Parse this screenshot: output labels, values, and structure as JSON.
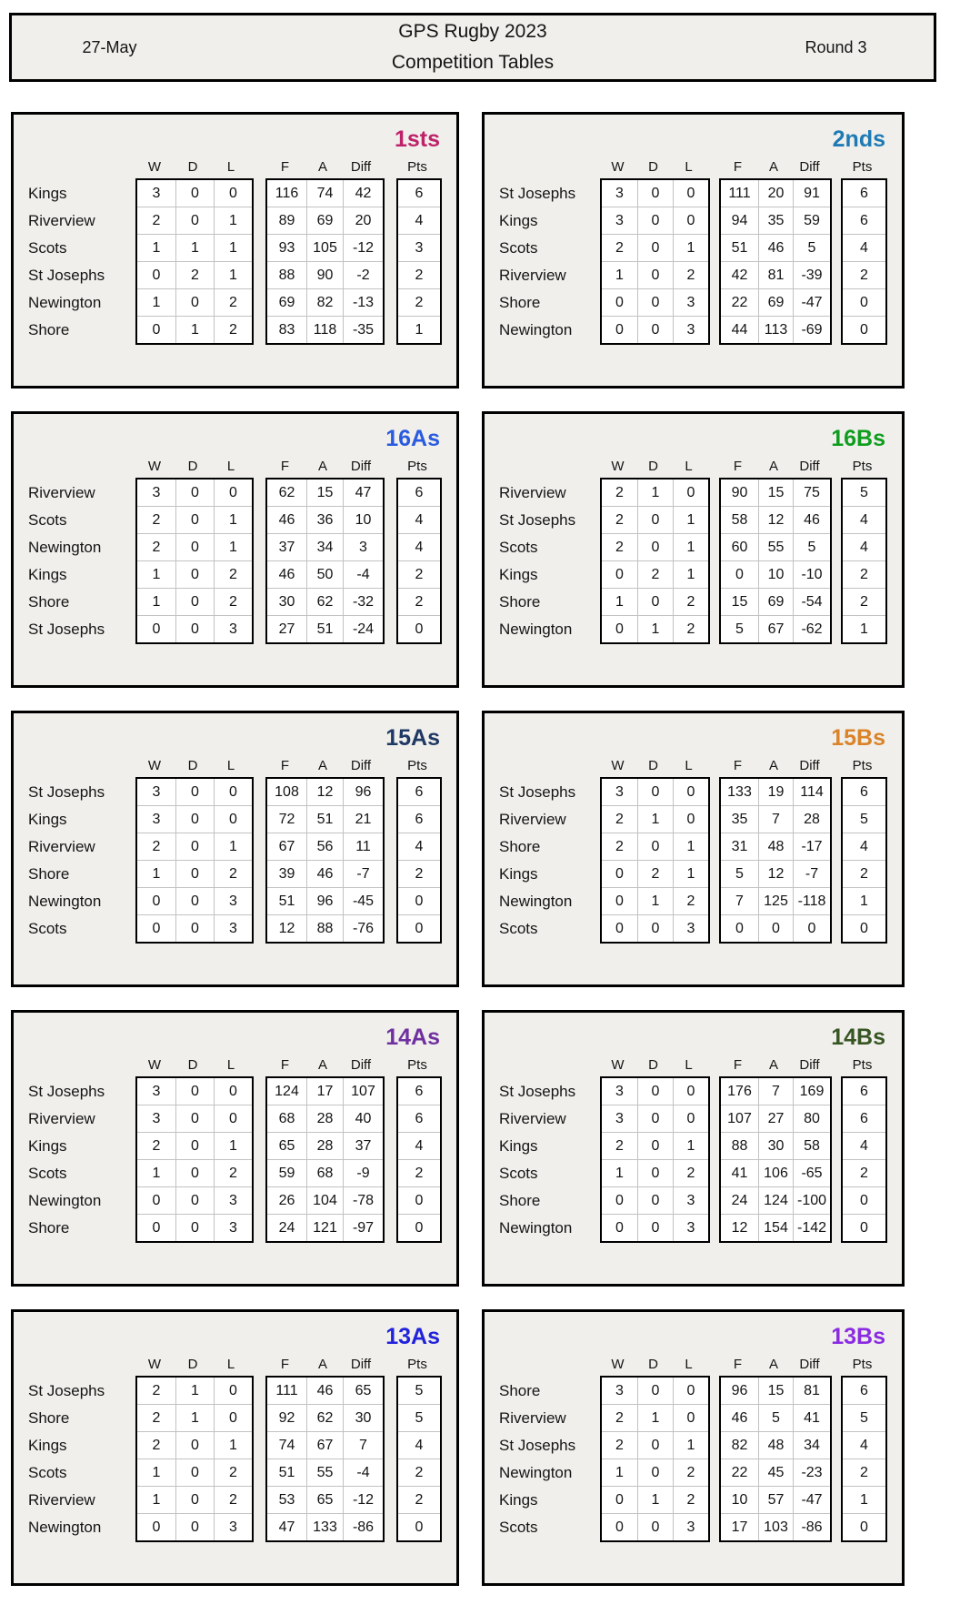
{
  "header": {
    "date": "27-May",
    "title_line1": "GPS Rugby 2023",
    "title_line2": "Competition Tables",
    "round": "Round 3"
  },
  "columns": {
    "record": [
      "W",
      "D",
      "L"
    ],
    "scores": [
      "F",
      "A",
      "Diff"
    ],
    "points": "Pts"
  },
  "tables": [
    {
      "title": "1sts",
      "color": "#BE2268",
      "rows": [
        {
          "team": "Kings",
          "w": 3,
          "d": 0,
          "l": 0,
          "f": 116,
          "a": 74,
          "diff": 42,
          "pts": 6
        },
        {
          "team": "Riverview",
          "w": 2,
          "d": 0,
          "l": 1,
          "f": 89,
          "a": 69,
          "diff": 20,
          "pts": 4
        },
        {
          "team": "Scots",
          "w": 1,
          "d": 1,
          "l": 1,
          "f": 93,
          "a": 105,
          "diff": -12,
          "pts": 3
        },
        {
          "team": "St Josephs",
          "w": 0,
          "d": 2,
          "l": 1,
          "f": 88,
          "a": 90,
          "diff": -2,
          "pts": 2
        },
        {
          "team": "Newington",
          "w": 1,
          "d": 0,
          "l": 2,
          "f": 69,
          "a": 82,
          "diff": -13,
          "pts": 2
        },
        {
          "team": "Shore",
          "w": 0,
          "d": 1,
          "l": 2,
          "f": 83,
          "a": 118,
          "diff": -35,
          "pts": 1
        }
      ]
    },
    {
      "title": "2nds",
      "color": "#1F7AB4",
      "rows": [
        {
          "team": "St Josephs",
          "w": 3,
          "d": 0,
          "l": 0,
          "f": 111,
          "a": 20,
          "diff": 91,
          "pts": 6
        },
        {
          "team": "Kings",
          "w": 3,
          "d": 0,
          "l": 0,
          "f": 94,
          "a": 35,
          "diff": 59,
          "pts": 6
        },
        {
          "team": "Scots",
          "w": 2,
          "d": 0,
          "l": 1,
          "f": 51,
          "a": 46,
          "diff": 5,
          "pts": 4
        },
        {
          "team": "Riverview",
          "w": 1,
          "d": 0,
          "l": 2,
          "f": 42,
          "a": 81,
          "diff": -39,
          "pts": 2
        },
        {
          "team": "Shore",
          "w": 0,
          "d": 0,
          "l": 3,
          "f": 22,
          "a": 69,
          "diff": -47,
          "pts": 0
        },
        {
          "team": "Newington",
          "w": 0,
          "d": 0,
          "l": 3,
          "f": 44,
          "a": 113,
          "diff": -69,
          "pts": 0
        }
      ]
    },
    {
      "title": "16As",
      "color": "#2A5BDF",
      "rows": [
        {
          "team": "Riverview",
          "w": 3,
          "d": 0,
          "l": 0,
          "f": 62,
          "a": 15,
          "diff": 47,
          "pts": 6
        },
        {
          "team": "Scots",
          "w": 2,
          "d": 0,
          "l": 1,
          "f": 46,
          "a": 36,
          "diff": 10,
          "pts": 4
        },
        {
          "team": "Newington",
          "w": 2,
          "d": 0,
          "l": 1,
          "f": 37,
          "a": 34,
          "diff": 3,
          "pts": 4
        },
        {
          "team": "Kings",
          "w": 1,
          "d": 0,
          "l": 2,
          "f": 46,
          "a": 50,
          "diff": -4,
          "pts": 2
        },
        {
          "team": "Shore",
          "w": 1,
          "d": 0,
          "l": 2,
          "f": 30,
          "a": 62,
          "diff": -32,
          "pts": 2
        },
        {
          "team": "St Josephs",
          "w": 0,
          "d": 0,
          "l": 3,
          "f": 27,
          "a": 51,
          "diff": -24,
          "pts": 0
        }
      ]
    },
    {
      "title": "16Bs",
      "color": "#0F9D1E",
      "rows": [
        {
          "team": "Riverview",
          "w": 2,
          "d": 1,
          "l": 0,
          "f": 90,
          "a": 15,
          "diff": 75,
          "pts": 5
        },
        {
          "team": "St Josephs",
          "w": 2,
          "d": 0,
          "l": 1,
          "f": 58,
          "a": 12,
          "diff": 46,
          "pts": 4
        },
        {
          "team": "Scots",
          "w": 2,
          "d": 0,
          "l": 1,
          "f": 60,
          "a": 55,
          "diff": 5,
          "pts": 4
        },
        {
          "team": "Kings",
          "w": 0,
          "d": 2,
          "l": 1,
          "f": 0,
          "a": 10,
          "diff": -10,
          "pts": 2
        },
        {
          "team": "Shore",
          "w": 1,
          "d": 0,
          "l": 2,
          "f": 15,
          "a": 69,
          "diff": -54,
          "pts": 2
        },
        {
          "team": "Newington",
          "w": 0,
          "d": 1,
          "l": 2,
          "f": 5,
          "a": 67,
          "diff": -62,
          "pts": 1
        }
      ]
    },
    {
      "title": "15As",
      "color": "#203864",
      "rows": [
        {
          "team": "St Josephs",
          "w": 3,
          "d": 0,
          "l": 0,
          "f": 108,
          "a": 12,
          "diff": 96,
          "pts": 6
        },
        {
          "team": "Kings",
          "w": 3,
          "d": 0,
          "l": 0,
          "f": 72,
          "a": 51,
          "diff": 21,
          "pts": 6
        },
        {
          "team": "Riverview",
          "w": 2,
          "d": 0,
          "l": 1,
          "f": 67,
          "a": 56,
          "diff": 11,
          "pts": 4
        },
        {
          "team": "Shore",
          "w": 1,
          "d": 0,
          "l": 2,
          "f": 39,
          "a": 46,
          "diff": -7,
          "pts": 2
        },
        {
          "team": "Newington",
          "w": 0,
          "d": 0,
          "l": 3,
          "f": 51,
          "a": 96,
          "diff": -45,
          "pts": 0
        },
        {
          "team": "Scots",
          "w": 0,
          "d": 0,
          "l": 3,
          "f": 12,
          "a": 88,
          "diff": -76,
          "pts": 0
        }
      ]
    },
    {
      "title": "15Bs",
      "color": "#DA8328",
      "rows": [
        {
          "team": "St Josephs",
          "w": 3,
          "d": 0,
          "l": 0,
          "f": 133,
          "a": 19,
          "diff": 114,
          "pts": 6
        },
        {
          "team": "Riverview",
          "w": 2,
          "d": 1,
          "l": 0,
          "f": 35,
          "a": 7,
          "diff": 28,
          "pts": 5
        },
        {
          "team": "Shore",
          "w": 2,
          "d": 0,
          "l": 1,
          "f": 31,
          "a": 48,
          "diff": -17,
          "pts": 4
        },
        {
          "team": "Kings",
          "w": 0,
          "d": 2,
          "l": 1,
          "f": 5,
          "a": 12,
          "diff": -7,
          "pts": 2
        },
        {
          "team": "Newington",
          "w": 0,
          "d": 1,
          "l": 2,
          "f": 7,
          "a": 125,
          "diff": -118,
          "pts": 1
        },
        {
          "team": "Scots",
          "w": 0,
          "d": 0,
          "l": 3,
          "f": 0,
          "a": 0,
          "diff": 0,
          "pts": 0
        }
      ]
    },
    {
      "title": "14As",
      "color": "#7030A0",
      "rows": [
        {
          "team": "St Josephs",
          "w": 3,
          "d": 0,
          "l": 0,
          "f": 124,
          "a": 17,
          "diff": 107,
          "pts": 6
        },
        {
          "team": "Riverview",
          "w": 3,
          "d": 0,
          "l": 0,
          "f": 68,
          "a": 28,
          "diff": 40,
          "pts": 6
        },
        {
          "team": "Kings",
          "w": 2,
          "d": 0,
          "l": 1,
          "f": 65,
          "a": 28,
          "diff": 37,
          "pts": 4
        },
        {
          "team": "Scots",
          "w": 1,
          "d": 0,
          "l": 2,
          "f": 59,
          "a": 68,
          "diff": -9,
          "pts": 2
        },
        {
          "team": "Newington",
          "w": 0,
          "d": 0,
          "l": 3,
          "f": 26,
          "a": 104,
          "diff": -78,
          "pts": 0
        },
        {
          "team": "Shore",
          "w": 0,
          "d": 0,
          "l": 3,
          "f": 24,
          "a": 121,
          "diff": -97,
          "pts": 0
        }
      ]
    },
    {
      "title": "14Bs",
      "color": "#375623",
      "rows": [
        {
          "team": "St Josephs",
          "w": 3,
          "d": 0,
          "l": 0,
          "f": 176,
          "a": 7,
          "diff": 169,
          "pts": 6
        },
        {
          "team": "Riverview",
          "w": 3,
          "d": 0,
          "l": 0,
          "f": 107,
          "a": 27,
          "diff": 80,
          "pts": 6
        },
        {
          "team": "Kings",
          "w": 2,
          "d": 0,
          "l": 1,
          "f": 88,
          "a": 30,
          "diff": 58,
          "pts": 4
        },
        {
          "team": "Scots",
          "w": 1,
          "d": 0,
          "l": 2,
          "f": 41,
          "a": 106,
          "diff": -65,
          "pts": 2
        },
        {
          "team": "Shore",
          "w": 0,
          "d": 0,
          "l": 3,
          "f": 24,
          "a": 124,
          "diff": -100,
          "pts": 0
        },
        {
          "team": "Newington",
          "w": 0,
          "d": 0,
          "l": 3,
          "f": 12,
          "a": 154,
          "diff": -142,
          "pts": 0
        }
      ]
    },
    {
      "title": "13As",
      "color": "#2222DC",
      "rows": [
        {
          "team": "St Josephs",
          "w": 2,
          "d": 1,
          "l": 0,
          "f": 111,
          "a": 46,
          "diff": 65,
          "pts": 5
        },
        {
          "team": "Shore",
          "w": 2,
          "d": 1,
          "l": 0,
          "f": 92,
          "a": 62,
          "diff": 30,
          "pts": 5
        },
        {
          "team": "Kings",
          "w": 2,
          "d": 0,
          "l": 1,
          "f": 74,
          "a": 67,
          "diff": 7,
          "pts": 4
        },
        {
          "team": "Scots",
          "w": 1,
          "d": 0,
          "l": 2,
          "f": 51,
          "a": 55,
          "diff": -4,
          "pts": 2
        },
        {
          "team": "Riverview",
          "w": 1,
          "d": 0,
          "l": 2,
          "f": 53,
          "a": 65,
          "diff": -12,
          "pts": 2
        },
        {
          "team": "Newington",
          "w": 0,
          "d": 0,
          "l": 3,
          "f": 47,
          "a": 133,
          "diff": -86,
          "pts": 0
        }
      ]
    },
    {
      "title": "13Bs",
      "color": "#8A2BE2",
      "rows": [
        {
          "team": "Shore",
          "w": 3,
          "d": 0,
          "l": 0,
          "f": 96,
          "a": 15,
          "diff": 81,
          "pts": 6
        },
        {
          "team": "Riverview",
          "w": 2,
          "d": 1,
          "l": 0,
          "f": 46,
          "a": 5,
          "diff": 41,
          "pts": 5
        },
        {
          "team": "St Josephs",
          "w": 2,
          "d": 0,
          "l": 1,
          "f": 82,
          "a": 48,
          "diff": 34,
          "pts": 4
        },
        {
          "team": "Newington",
          "w": 1,
          "d": 0,
          "l": 2,
          "f": 22,
          "a": 45,
          "diff": -23,
          "pts": 2
        },
        {
          "team": "Kings",
          "w": 0,
          "d": 1,
          "l": 2,
          "f": 10,
          "a": 57,
          "diff": -47,
          "pts": 1
        },
        {
          "team": "Scots",
          "w": 0,
          "d": 0,
          "l": 3,
          "f": 17,
          "a": 103,
          "diff": -86,
          "pts": 0
        }
      ]
    }
  ]
}
